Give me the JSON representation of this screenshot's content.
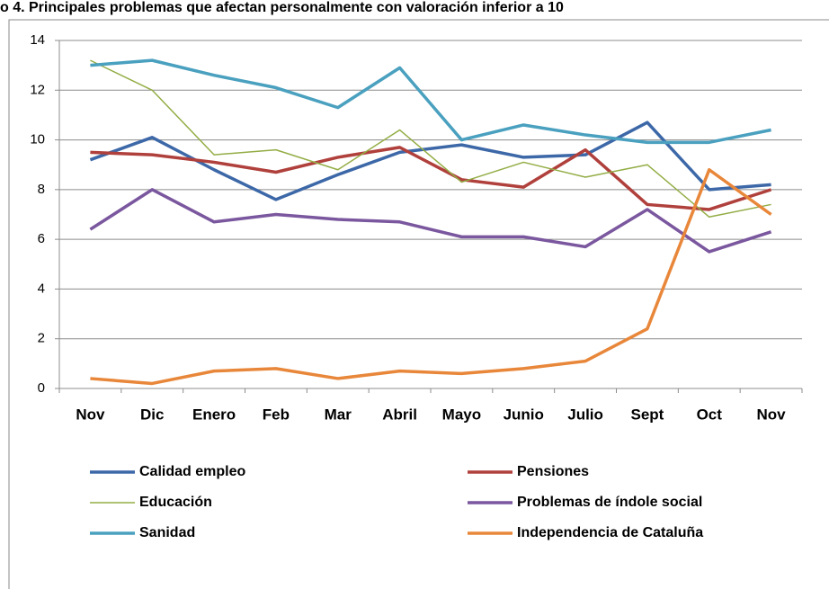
{
  "chart_data": {
    "type": "line",
    "title": "o 4. Principales problemas que afectan personalmente con valoración inferior  a  10",
    "categories": [
      "Nov",
      "Dic",
      "Enero",
      "Feb",
      "Mar",
      "Abril",
      "Mayo",
      "Junio",
      "Julio",
      "Sept",
      "Oct",
      "Nov"
    ],
    "series": [
      {
        "name": "Calidad empleo",
        "color": "#3d68a8",
        "values": [
          9.2,
          10.1,
          8.8,
          7.6,
          8.6,
          9.5,
          9.8,
          9.3,
          9.4,
          10.7,
          8.0,
          8.2
        ]
      },
      {
        "name": "Pensiones",
        "color": "#b0403c",
        "values": [
          9.5,
          9.4,
          9.1,
          8.7,
          9.3,
          9.7,
          8.4,
          8.1,
          9.6,
          7.4,
          7.2,
          8.0
        ]
      },
      {
        "name": "Educación",
        "color": "#93ad45",
        "values": [
          13.2,
          12.0,
          9.4,
          9.6,
          8.8,
          10.4,
          8.3,
          9.1,
          8.5,
          9.0,
          6.9,
          7.4
        ]
      },
      {
        "name": "Problemas de índole social",
        "color": "#7a579e",
        "values": [
          6.4,
          8.0,
          6.7,
          7.0,
          6.8,
          6.7,
          6.1,
          6.1,
          5.7,
          7.2,
          5.5,
          6.3
        ]
      },
      {
        "name": "Sanidad",
        "color": "#4aa0bf",
        "values": [
          13.0,
          13.2,
          12.6,
          12.1,
          11.3,
          12.9,
          10.0,
          10.6,
          10.2,
          9.9,
          9.9,
          10.4
        ]
      },
      {
        "name": "Independencia  de Cataluña",
        "color": "#e8873a",
        "values": [
          0.4,
          0.2,
          0.7,
          0.8,
          0.4,
          0.7,
          0.6,
          0.8,
          1.1,
          2.4,
          8.8,
          7.0
        ]
      }
    ],
    "ylim": [
      0,
      14
    ],
    "yticks": [
      0,
      2,
      4,
      6,
      8,
      10,
      12,
      14
    ],
    "grid": true
  }
}
